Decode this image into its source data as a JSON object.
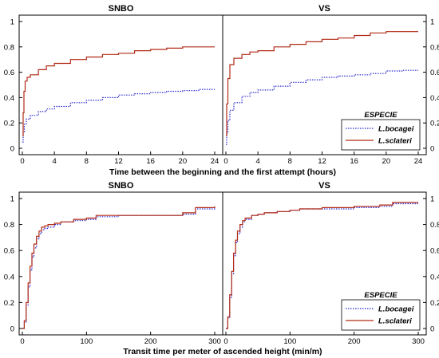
{
  "chart_data": [
    {
      "type": "line",
      "title": "SNBO",
      "xlabel": "Time between the beginning and the first attempt (hours)",
      "xlim": [
        0,
        24
      ],
      "ylim": [
        0,
        1
      ],
      "xticks": [
        "0",
        "4",
        "8",
        "12",
        "16",
        "20",
        "24"
      ],
      "yticks": [
        "0",
        "0.2",
        "0.4",
        "0.6",
        "0.8",
        "1"
      ],
      "series": [
        {
          "name": "L.bocagei",
          "color": "#2a2ad0",
          "style": "dotted",
          "points": [
            [
              0,
              0.05
            ],
            [
              0.1,
              0.13
            ],
            [
              0.25,
              0.19
            ],
            [
              0.5,
              0.23
            ],
            [
              1,
              0.26
            ],
            [
              2,
              0.29
            ],
            [
              3,
              0.31
            ],
            [
              4,
              0.33
            ],
            [
              6,
              0.36
            ],
            [
              8,
              0.38
            ],
            [
              10,
              0.4
            ],
            [
              12,
              0.42
            ],
            [
              14,
              0.43
            ],
            [
              16,
              0.44
            ],
            [
              18,
              0.45
            ],
            [
              20,
              0.455
            ],
            [
              22,
              0.465
            ],
            [
              24,
              0.465
            ]
          ]
        },
        {
          "name": "L.sclateri",
          "color": "#b22a16",
          "style": "solid",
          "points": [
            [
              0,
              0.1
            ],
            [
              0.1,
              0.28
            ],
            [
              0.2,
              0.45
            ],
            [
              0.35,
              0.53
            ],
            [
              0.6,
              0.56
            ],
            [
              1,
              0.58
            ],
            [
              2,
              0.62
            ],
            [
              3,
              0.65
            ],
            [
              4,
              0.67
            ],
            [
              6,
              0.7
            ],
            [
              8,
              0.72
            ],
            [
              10,
              0.74
            ],
            [
              12,
              0.75
            ],
            [
              14,
              0.77
            ],
            [
              16,
              0.78
            ],
            [
              18,
              0.79
            ],
            [
              20,
              0.8
            ],
            [
              22,
              0.8
            ],
            [
              24,
              0.8
            ]
          ]
        }
      ]
    },
    {
      "type": "line",
      "title": "VS",
      "xlim": [
        0,
        24
      ],
      "ylim": [
        0,
        1
      ],
      "xticks": [
        "0",
        "4",
        "8",
        "12",
        "16",
        "20",
        "24"
      ],
      "yticks": [
        "0",
        "0.2",
        "0.4",
        "0.6",
        "0.8",
        "1"
      ],
      "legend": {
        "title": "ESPECIE",
        "entries": [
          "L.bocagei",
          "L.sclateri"
        ],
        "position": "bottom-right"
      },
      "series": [
        {
          "name": "L.bocagei",
          "color": "#2a2ad0",
          "style": "dotted",
          "points": [
            [
              0,
              0.03
            ],
            [
              0.1,
              0.12
            ],
            [
              0.25,
              0.22
            ],
            [
              0.5,
              0.3
            ],
            [
              1,
              0.36
            ],
            [
              2,
              0.41
            ],
            [
              3,
              0.44
            ],
            [
              4,
              0.46
            ],
            [
              6,
              0.49
            ],
            [
              8,
              0.52
            ],
            [
              10,
              0.54
            ],
            [
              12,
              0.56
            ],
            [
              14,
              0.57
            ],
            [
              16,
              0.58
            ],
            [
              18,
              0.59
            ],
            [
              20,
              0.61
            ],
            [
              22,
              0.615
            ],
            [
              24,
              0.615
            ]
          ]
        },
        {
          "name": "L.sclateri",
          "color": "#b22a16",
          "style": "solid",
          "points": [
            [
              0,
              0.1
            ],
            [
              0.1,
              0.35
            ],
            [
              0.25,
              0.55
            ],
            [
              0.5,
              0.66
            ],
            [
              1,
              0.71
            ],
            [
              2,
              0.74
            ],
            [
              3,
              0.76
            ],
            [
              4,
              0.77
            ],
            [
              6,
              0.8
            ],
            [
              8,
              0.82
            ],
            [
              10,
              0.84
            ],
            [
              12,
              0.86
            ],
            [
              14,
              0.87
            ],
            [
              16,
              0.89
            ],
            [
              18,
              0.91
            ],
            [
              20,
              0.92
            ],
            [
              22,
              0.92
            ],
            [
              24,
              0.92
            ]
          ]
        }
      ]
    },
    {
      "type": "line",
      "title": "SNBO",
      "xlabel": "Transit time per meter of ascended height (min/m)",
      "xlim": [
        0,
        300
      ],
      "ylim": [
        0,
        1
      ],
      "xticks": [
        "0",
        "100",
        "200",
        "300"
      ],
      "yticks": [
        "0",
        "0.2",
        "0.4",
        "0.6",
        "0.8",
        "1"
      ],
      "series": [
        {
          "name": "L.bocagei",
          "color": "#2a2ad0",
          "style": "dotted",
          "points": [
            [
              0,
              0
            ],
            [
              3,
              0.05
            ],
            [
              6,
              0.18
            ],
            [
              9,
              0.32
            ],
            [
              12,
              0.45
            ],
            [
              15,
              0.55
            ],
            [
              18,
              0.62
            ],
            [
              22,
              0.69
            ],
            [
              26,
              0.73
            ],
            [
              30,
              0.76
            ],
            [
              35,
              0.77
            ],
            [
              40,
              0.78
            ],
            [
              50,
              0.8
            ],
            [
              60,
              0.82
            ],
            [
              80,
              0.83
            ],
            [
              100,
              0.84
            ],
            [
              115,
              0.86
            ],
            [
              150,
              0.87
            ],
            [
              200,
              0.87
            ],
            [
              250,
              0.88
            ],
            [
              270,
              0.92
            ],
            [
              300,
              0.93
            ]
          ]
        },
        {
          "name": "L.sclateri",
          "color": "#b22a16",
          "style": "solid",
          "points": [
            [
              0,
              0
            ],
            [
              3,
              0.06
            ],
            [
              6,
              0.2
            ],
            [
              9,
              0.35
            ],
            [
              12,
              0.48
            ],
            [
              15,
              0.58
            ],
            [
              18,
              0.65
            ],
            [
              22,
              0.71
            ],
            [
              26,
              0.75
            ],
            [
              30,
              0.78
            ],
            [
              35,
              0.79
            ],
            [
              40,
              0.8
            ],
            [
              50,
              0.81
            ],
            [
              60,
              0.82
            ],
            [
              80,
              0.84
            ],
            [
              100,
              0.85
            ],
            [
              115,
              0.87
            ],
            [
              150,
              0.87
            ],
            [
              200,
              0.87
            ],
            [
              250,
              0.89
            ],
            [
              270,
              0.93
            ],
            [
              300,
              0.94
            ]
          ]
        }
      ]
    },
    {
      "type": "line",
      "title": "VS",
      "xlim": [
        0,
        300
      ],
      "ylim": [
        0,
        1
      ],
      "xticks": [
        "0",
        "100",
        "200",
        "300"
      ],
      "yticks": [
        "0",
        "0.2",
        "0.4",
        "0.6",
        "0.8",
        "1"
      ],
      "legend": {
        "title": "ESPECIE",
        "entries": [
          "L.bocagei",
          "L.sclateri"
        ],
        "position": "bottom-right"
      },
      "series": [
        {
          "name": "L.bocagei",
          "color": "#2a2ad0",
          "style": "dotted",
          "points": [
            [
              0,
              0
            ],
            [
              3,
              0.08
            ],
            [
              6,
              0.24
            ],
            [
              9,
              0.42
            ],
            [
              12,
              0.56
            ],
            [
              15,
              0.66
            ],
            [
              18,
              0.73
            ],
            [
              22,
              0.78
            ],
            [
              26,
              0.82
            ],
            [
              30,
              0.84
            ],
            [
              40,
              0.87
            ],
            [
              50,
              0.88
            ],
            [
              60,
              0.89
            ],
            [
              80,
              0.9
            ],
            [
              100,
              0.91
            ],
            [
              115,
              0.92
            ],
            [
              150,
              0.92
            ],
            [
              200,
              0.93
            ],
            [
              240,
              0.94
            ],
            [
              260,
              0.96
            ],
            [
              300,
              0.96
            ]
          ]
        },
        {
          "name": "L.sclateri",
          "color": "#b22a16",
          "style": "solid",
          "points": [
            [
              0,
              0
            ],
            [
              3,
              0.09
            ],
            [
              6,
              0.26
            ],
            [
              9,
              0.44
            ],
            [
              12,
              0.58
            ],
            [
              15,
              0.68
            ],
            [
              18,
              0.75
            ],
            [
              22,
              0.8
            ],
            [
              26,
              0.83
            ],
            [
              30,
              0.85
            ],
            [
              40,
              0.87
            ],
            [
              50,
              0.88
            ],
            [
              60,
              0.89
            ],
            [
              80,
              0.9
            ],
            [
              100,
              0.91
            ],
            [
              115,
              0.92
            ],
            [
              150,
              0.93
            ],
            [
              200,
              0.94
            ],
            [
              240,
              0.95
            ],
            [
              260,
              0.97
            ],
            [
              300,
              0.97
            ]
          ]
        }
      ]
    }
  ]
}
